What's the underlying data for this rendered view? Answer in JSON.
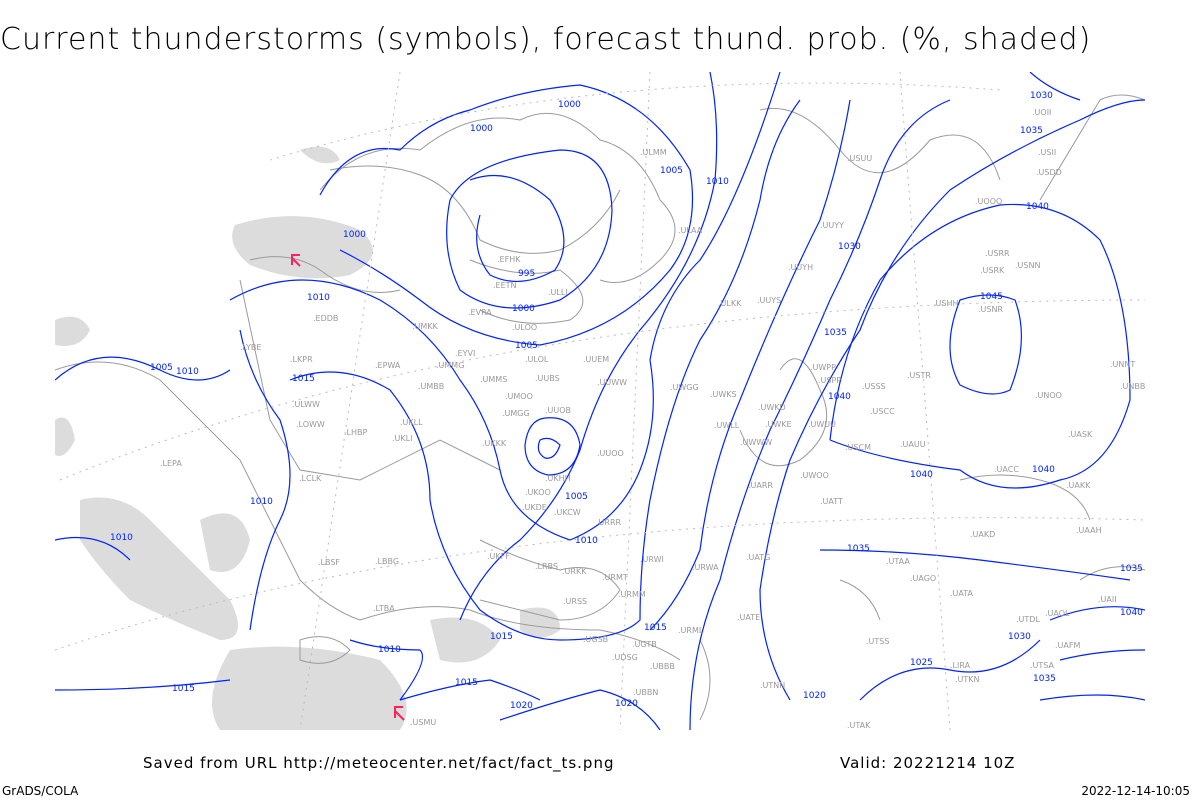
{
  "title": "Current thunderstorms (symbols), forecast thund. prob. (%, shaded)",
  "footer": {
    "saved_from": "Saved from URL http://meteocenter.net/fact/fact_ts.png",
    "valid": "Valid: 20221214 10Z",
    "software": "GrADS/COLA",
    "timestamp": "2022-12-14-10:05"
  },
  "colors": {
    "isobar": "#0022ff",
    "coastline": "#9a9a9a",
    "shading": "#d8d8d8",
    "thunderstorm_symbol": "#ff2060"
  },
  "isobar_labels": [
    "1000",
    "1000",
    "1005",
    "1010",
    "1000",
    "995",
    "1000",
    "1005",
    "1010",
    "1005",
    "1010",
    "1015",
    "1010",
    "1010",
    "1005",
    "1010",
    "1015",
    "1010",
    "1015",
    "1015",
    "1020",
    "1020",
    "1015",
    "1020",
    "1025",
    "1030",
    "1035",
    "1030",
    "1040",
    "1045",
    "1035",
    "1040",
    "1040",
    "1040",
    "1035",
    "1035",
    "1030",
    "1035",
    "1040"
  ],
  "stations": [
    "ULMM",
    "ULAA",
    "EFHK",
    "EETN",
    "ULLI",
    "EVRA",
    "ULOO",
    "UMKK",
    "ULOL",
    "EYVI",
    "UUEM",
    "UMMG",
    "EPWA",
    "UMMS",
    "UMOO",
    "UUBS",
    "UUWW",
    "UMBB",
    "UWGG",
    "ULWW",
    "EDDB",
    "LKPR",
    "LOWW",
    "UKLL",
    "UKLI",
    "LHBP",
    "UKKK",
    "UMGG",
    "UUOB",
    "UUOO",
    "UKHH",
    "UKOO",
    "UKDE",
    "UKCW",
    "URRR",
    "UKFF",
    "LRBS",
    "LBSF",
    "LBBG",
    "LTBA",
    "URKK",
    "URMT",
    "URMM",
    "URSS",
    "UGSB",
    "UGTB",
    "UDSG",
    "UBBB",
    "UBBN",
    "URWI",
    "URWA",
    "URML",
    "UATG",
    "UATE",
    "UATT",
    "UARR",
    "UWKS",
    "UWKD",
    "UWLL",
    "UWWW",
    "UWUU",
    "UWOO",
    "UWPP",
    "USCC",
    "USCM",
    "UAUU",
    "UACC",
    "UAKK",
    "USSS",
    "USTR",
    "USPP",
    "UWKE",
    "USUU",
    "UUYY",
    "UUYH",
    "ULKK",
    "UUYS",
    "USRR",
    "USRK",
    "USNN",
    "USNR",
    "USII",
    "USHH",
    "UNOO",
    "UNBB",
    "UNNT",
    "UASK",
    "UAAH",
    "UAKD",
    "UAOL",
    "UAGO",
    "UATA",
    "UTAA",
    "UTAK",
    "UTNN",
    "UTSS",
    "UTKN",
    "UAFM",
    "UAII",
    "UTDL",
    "UTSA",
    "LIRA",
    "LEPA",
    "LYBE",
    "LCLK",
    "USMU",
    "UOOO",
    "UOII",
    "USDD"
  ],
  "lightning_symbol_count": 2
}
